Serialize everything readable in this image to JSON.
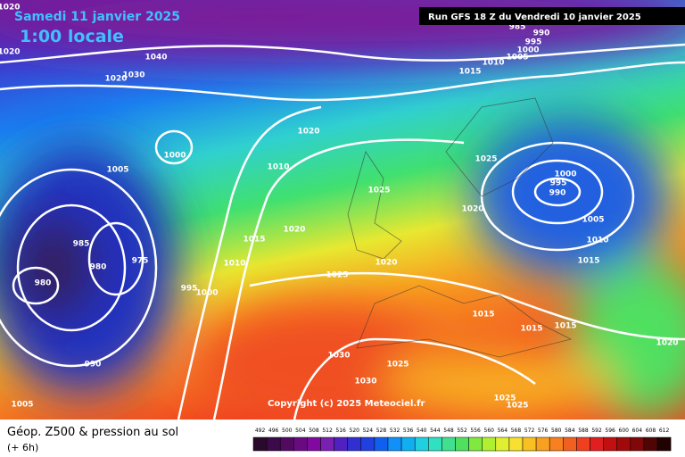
{
  "header": {
    "date": "Samedi 11 janvier 2025",
    "time": "1:00 locale",
    "run": "Run GFS 18 Z du Vendredi 10 janvier 2025"
  },
  "copyright": "Copyright (c) 2025 Meteociel.fr",
  "legend": {
    "title": "Géop. Z500 & pression au sol",
    "lead": "(+ 6h)",
    "colorbar": [
      492,
      496,
      500,
      504,
      508,
      512,
      516,
      520,
      524,
      528,
      532,
      536,
      540,
      544,
      548,
      552,
      556,
      560,
      564,
      568,
      572,
      576,
      580,
      584,
      588,
      592,
      596,
      600,
      604,
      608,
      612
    ]
  },
  "isobar_labels": [
    "1020",
    "1020",
    "1040",
    "1030",
    "1020",
    "1015",
    "1010",
    "1005",
    "1000",
    "995",
    "990",
    "985",
    "1020",
    "1000",
    "1005",
    "1010",
    "1025",
    "1000",
    "995",
    "990",
    "1025",
    "1020",
    "1005",
    "985",
    "980",
    "975",
    "980",
    "1020",
    "1015",
    "1010",
    "1010",
    "1015",
    "1025",
    "1020",
    "995",
    "1000",
    "1015",
    "1015",
    "1015",
    "1020",
    "990",
    "1030",
    "1025",
    "1030",
    "1005",
    "1025",
    "1025"
  ]
}
